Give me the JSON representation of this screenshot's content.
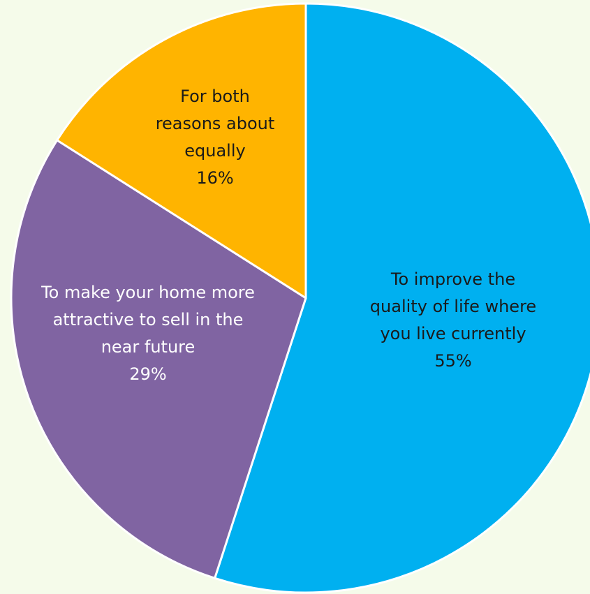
{
  "chart_data": {
    "type": "pie",
    "title": "",
    "start_angle": "12 o'clock",
    "direction": "clockwise",
    "legend": "none",
    "slices": [
      {
        "lines": [
          "To improve the",
          "quality of life where",
          "you live currently"
        ],
        "value": 55,
        "value_label": "55%",
        "color": "#00B0F0",
        "text_color": "#1A1A1A"
      },
      {
        "lines": [
          "To make your home more",
          "attractive to sell in the",
          "near future"
        ],
        "value": 29,
        "value_label": "29%",
        "color": "#8064A2",
        "text_color": "#FFFFFF"
      },
      {
        "lines": [
          "For both",
          "reasons about",
          "equally"
        ],
        "value": 16,
        "value_label": "16%",
        "color": "#FFB400",
        "text_color": "#1A1A1A"
      }
    ]
  },
  "colors": {
    "background": "#F5FBEA",
    "slice_border": "#FFFFFF"
  }
}
